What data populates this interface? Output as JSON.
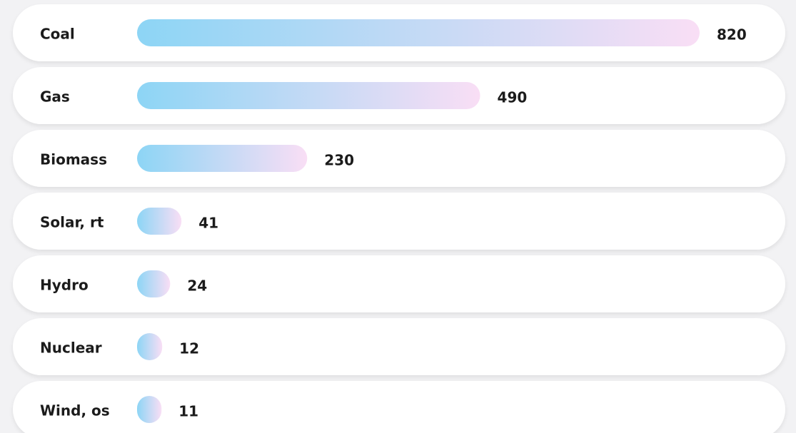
{
  "chart_data": {
    "type": "bar",
    "categories": [
      "Coal",
      "Gas",
      "Biomass",
      "Solar, rt",
      "Hydro",
      "Nuclear",
      "Wind, os"
    ],
    "values": [
      820,
      490,
      230,
      41,
      24,
      12,
      11
    ],
    "colors": [
      "#8dd5f5",
      "#f9def5"
    ],
    "highlight_index": 5,
    "highlight_color": "#12a5e3"
  }
}
